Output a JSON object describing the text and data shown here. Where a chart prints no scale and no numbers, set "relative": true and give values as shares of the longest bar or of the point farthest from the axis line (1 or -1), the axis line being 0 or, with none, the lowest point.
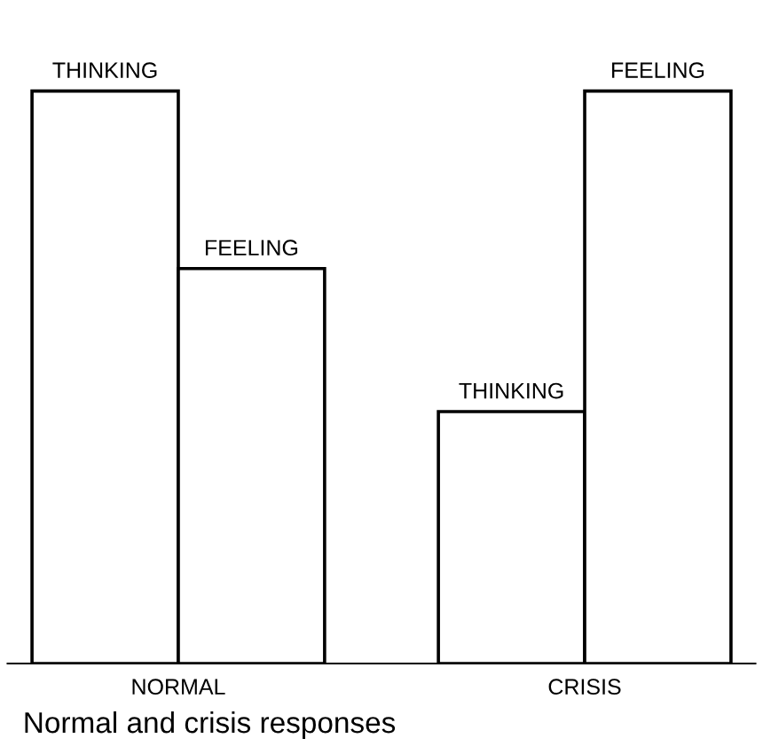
{
  "chart_data": {
    "type": "bar",
    "title": "Normal and crisis responses",
    "relative": true,
    "categories": [
      "NORMAL",
      "CRISIS"
    ],
    "series": [
      {
        "name": "THINKING",
        "color": "#ffffff",
        "values": [
          1,
          0.44
        ]
      },
      {
        "name": "FEELING",
        "color": "#ffffff",
        "values": [
          0.69,
          1
        ]
      }
    ],
    "grid": false,
    "legend": false
  }
}
